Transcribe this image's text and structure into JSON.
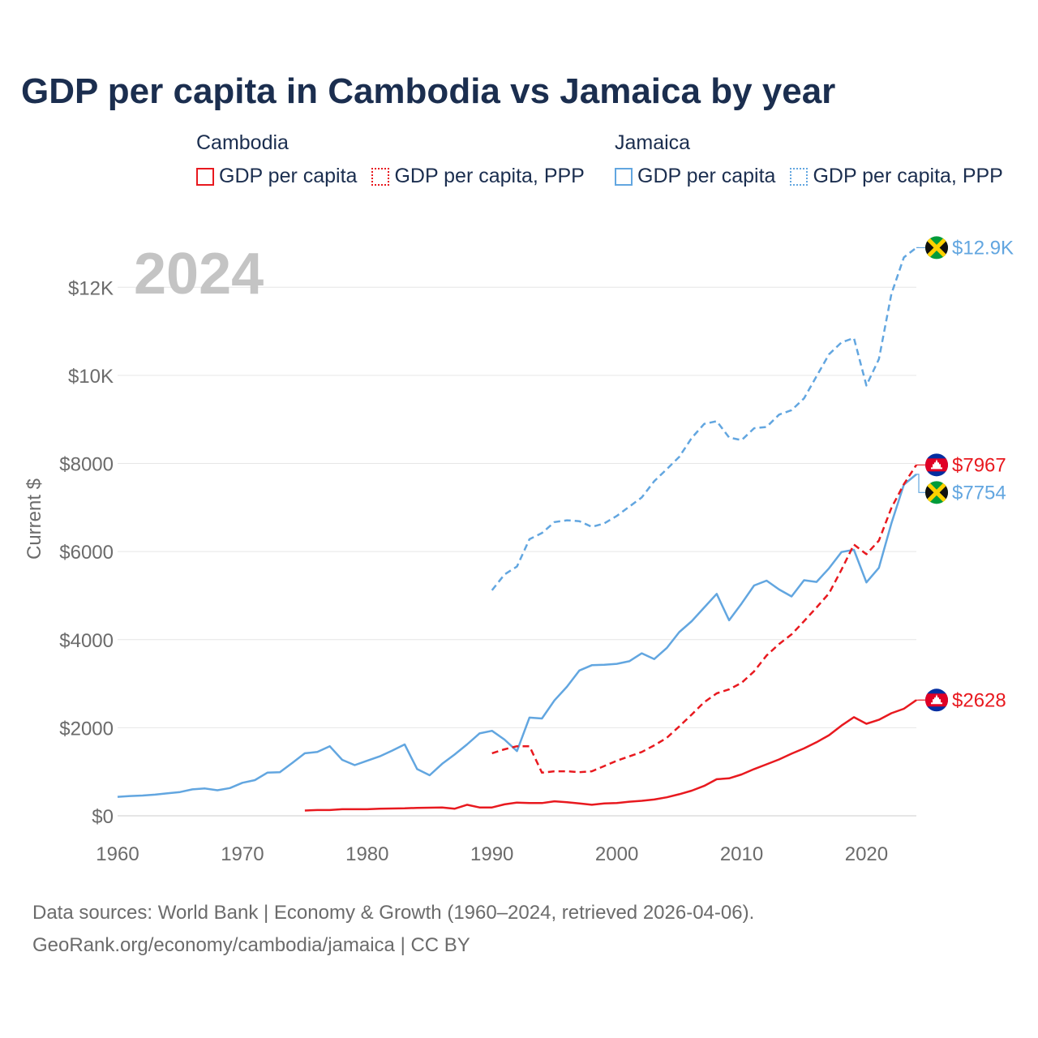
{
  "colors": {
    "cambodia": "#e8191f",
    "jamaica": "#62a6e0",
    "title": "#1b2e4f",
    "grid": "#e6e6e6",
    "axis_text": "#6b6b6b",
    "watermark": "#c4c4c4"
  },
  "header": {
    "title": "GDP per capita in Cambodia vs Jamaica by year"
  },
  "legend": {
    "groups": [
      {
        "name": "Cambodia",
        "items": [
          "GDP per capita",
          "GDP per capita, PPP"
        ]
      },
      {
        "name": "Jamaica",
        "items": [
          "GDP per capita",
          "GDP per capita, PPP"
        ]
      }
    ]
  },
  "footer": {
    "source_line1": "Data sources: World Bank | Economy & Growth (1960–2024, retrieved 2026-04-06).",
    "source_line2": "GeoRank.org/economy/cambodia/jamaica | CC BY"
  },
  "chart_data": {
    "type": "line",
    "title": "GDP per capita in Cambodia vs Jamaica by year",
    "xlabel": "",
    "ylabel": "Current $",
    "year_watermark": "2024",
    "xlim": [
      1960,
      2024
    ],
    "ylim": [
      0,
      13000
    ],
    "x_ticks": [
      1960,
      1970,
      1980,
      1990,
      2000,
      2010,
      2020
    ],
    "x_tick_labels": [
      "1960",
      "1970",
      "1980",
      "1990",
      "2000",
      "2010",
      "2020"
    ],
    "y_ticks": [
      0,
      2000,
      4000,
      6000,
      8000,
      10000,
      12000
    ],
    "y_tick_labels": [
      "$0",
      "$2000",
      "$4000",
      "$6000",
      "$8000",
      "$10K",
      "$12K"
    ],
    "grid": true,
    "series": [
      {
        "name": "Jamaica GDP per capita",
        "country": "jamaica",
        "style": "solid",
        "end_label": "$7754",
        "end_value": 7754,
        "x": [
          1960,
          1961,
          1962,
          1963,
          1964,
          1965,
          1966,
          1967,
          1968,
          1969,
          1970,
          1971,
          1972,
          1973,
          1974,
          1975,
          1976,
          1977,
          1978,
          1979,
          1980,
          1981,
          1982,
          1983,
          1984,
          1985,
          1986,
          1987,
          1988,
          1989,
          1990,
          1991,
          1992,
          1993,
          1994,
          1995,
          1996,
          1997,
          1998,
          1999,
          2000,
          2001,
          2002,
          2003,
          2004,
          2005,
          2006,
          2007,
          2008,
          2009,
          2010,
          2011,
          2012,
          2013,
          2014,
          2015,
          2016,
          2017,
          2018,
          2019,
          2020,
          2021,
          2022,
          2023,
          2024
        ],
        "values": [
          430,
          450,
          460,
          480,
          510,
          540,
          600,
          620,
          580,
          630,
          750,
          810,
          980,
          990,
          1200,
          1420,
          1450,
          1580,
          1270,
          1150,
          1250,
          1350,
          1480,
          1620,
          1060,
          920,
          1180,
          1390,
          1620,
          1870,
          1930,
          1730,
          1470,
          2230,
          2210,
          2620,
          2930,
          3300,
          3420,
          3430,
          3450,
          3510,
          3690,
          3560,
          3810,
          4170,
          4420,
          4730,
          5040,
          4440,
          4820,
          5230,
          5340,
          5140,
          4980,
          5350,
          5310,
          5620,
          5990,
          6040,
          5300,
          5630,
          6640,
          7520,
          7754
        ]
      },
      {
        "name": "Jamaica GDP per capita, PPP",
        "country": "jamaica",
        "style": "dashed",
        "end_label": "$12.9K",
        "end_value": 12900,
        "x": [
          1990,
          1991,
          1992,
          1993,
          1994,
          1995,
          1996,
          1997,
          1998,
          1999,
          2000,
          2001,
          2002,
          2003,
          2004,
          2005,
          2006,
          2007,
          2008,
          2009,
          2010,
          2011,
          2012,
          2013,
          2014,
          2015,
          2016,
          2017,
          2018,
          2019,
          2020,
          2021,
          2022,
          2023,
          2024
        ],
        "values": [
          5120,
          5480,
          5660,
          6280,
          6420,
          6670,
          6710,
          6690,
          6560,
          6640,
          6810,
          7020,
          7230,
          7600,
          7870,
          8150,
          8580,
          8900,
          8960,
          8590,
          8530,
          8800,
          8830,
          9110,
          9210,
          9480,
          9980,
          10480,
          10750,
          10850,
          9770,
          10370,
          11850,
          12680,
          12900
        ]
      },
      {
        "name": "Cambodia GDP per capita",
        "country": "cambodia",
        "style": "solid",
        "end_label": "$2628",
        "end_value": 2628,
        "x": [
          1975,
          1976,
          1977,
          1978,
          1979,
          1980,
          1981,
          1982,
          1983,
          1984,
          1985,
          1986,
          1987,
          1988,
          1989,
          1990,
          1991,
          1992,
          1993,
          1994,
          1995,
          1996,
          1997,
          1998,
          1999,
          2000,
          2001,
          2002,
          2003,
          2004,
          2005,
          2006,
          2007,
          2008,
          2009,
          2010,
          2011,
          2012,
          2013,
          2014,
          2015,
          2016,
          2017,
          2018,
          2019,
          2020,
          2021,
          2022,
          2023,
          2024
        ],
        "values": [
          120,
          130,
          130,
          150,
          150,
          150,
          160,
          165,
          170,
          180,
          185,
          190,
          160,
          250,
          190,
          190,
          260,
          300,
          290,
          290,
          330,
          310,
          280,
          250,
          280,
          290,
          320,
          340,
          370,
          420,
          490,
          570,
          680,
          830,
          850,
          940,
          1060,
          1170,
          1280,
          1410,
          1530,
          1670,
          1830,
          2050,
          2240,
          2090,
          2180,
          2330,
          2430,
          2628
        ]
      },
      {
        "name": "Cambodia GDP per capita, PPP",
        "country": "cambodia",
        "style": "dashed",
        "end_label": "$7967",
        "end_value": 7967,
        "x": [
          1990,
          1991,
          1992,
          1993,
          1994,
          1995,
          1996,
          1997,
          1998,
          1999,
          2000,
          2001,
          2002,
          2003,
          2004,
          2005,
          2006,
          2007,
          2008,
          2009,
          2010,
          2011,
          2012,
          2013,
          2014,
          2015,
          2016,
          2017,
          2018,
          2019,
          2020,
          2021,
          2022,
          2023,
          2024
        ],
        "values": [
          1420,
          1510,
          1580,
          1580,
          980,
          1010,
          1010,
          990,
          1010,
          1130,
          1250,
          1350,
          1450,
          1600,
          1770,
          2030,
          2300,
          2580,
          2780,
          2870,
          3020,
          3280,
          3640,
          3900,
          4120,
          4420,
          4730,
          5050,
          5590,
          6160,
          5940,
          6250,
          6990,
          7530,
          7967
        ]
      }
    ]
  }
}
